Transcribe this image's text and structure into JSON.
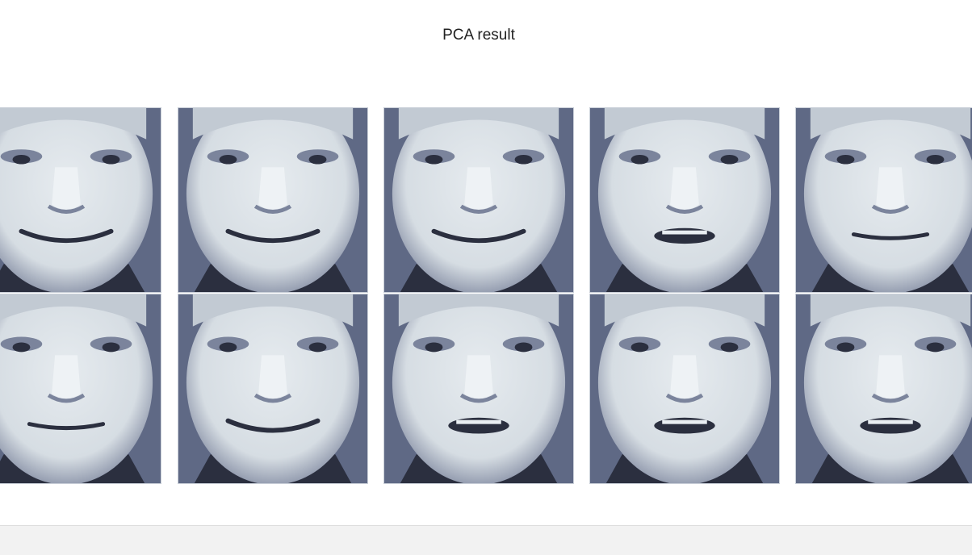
{
  "figure": {
    "title": "PCA result",
    "rows": 2,
    "cols": 5,
    "colormap": "bone",
    "colors": {
      "skin": "#d6dde3",
      "shadow": "#7b849c",
      "background": "#5f6985",
      "dark": "#2b2f3f"
    }
  },
  "faces": [
    {
      "id": 1,
      "expression": "smile"
    },
    {
      "id": 2,
      "expression": "smile"
    },
    {
      "id": 3,
      "expression": "smile"
    },
    {
      "id": 4,
      "expression": "open-mouth"
    },
    {
      "id": 5,
      "expression": "neutral"
    },
    {
      "id": 6,
      "expression": "neutral"
    },
    {
      "id": 7,
      "expression": "smile"
    },
    {
      "id": 8,
      "expression": "open-mouth"
    },
    {
      "id": 9,
      "expression": "open-mouth"
    },
    {
      "id": 10,
      "expression": "open-mouth"
    }
  ]
}
